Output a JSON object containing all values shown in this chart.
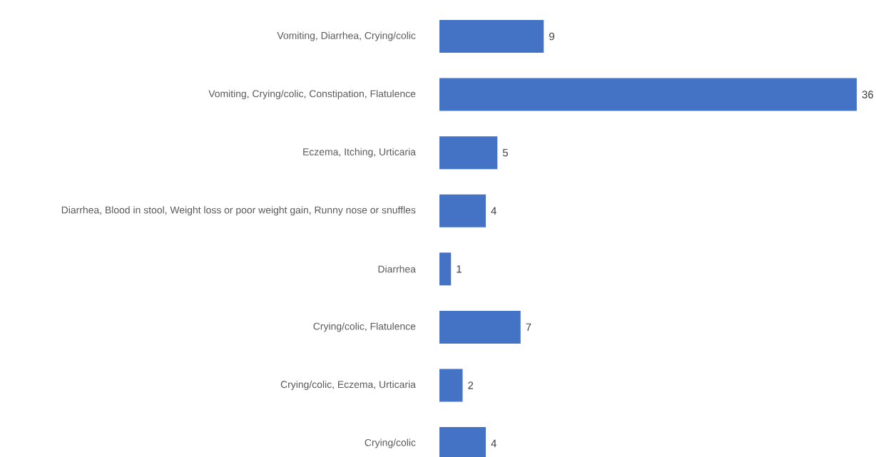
{
  "chart_data": {
    "type": "bar",
    "orientation": "horizontal",
    "categories": [
      "Vomiting, Diarrhea, Crying/colic",
      "Vomiting, Crying/colic, Constipation, Flatulence",
      "Eczema, Itching,  Urticaria",
      "Diarrhea, Blood in stool, Weight loss or poor weight gain, Runny nose or snuffles",
      "Diarrhea",
      "Crying/colic, Flatulence",
      "Crying/colic, Eczema, Urticaria",
      "Crying/colic"
    ],
    "values": [
      9,
      36,
      5,
      4,
      1,
      7,
      2,
      4
    ],
    "color": "#4472c4",
    "data_labels": true
  }
}
